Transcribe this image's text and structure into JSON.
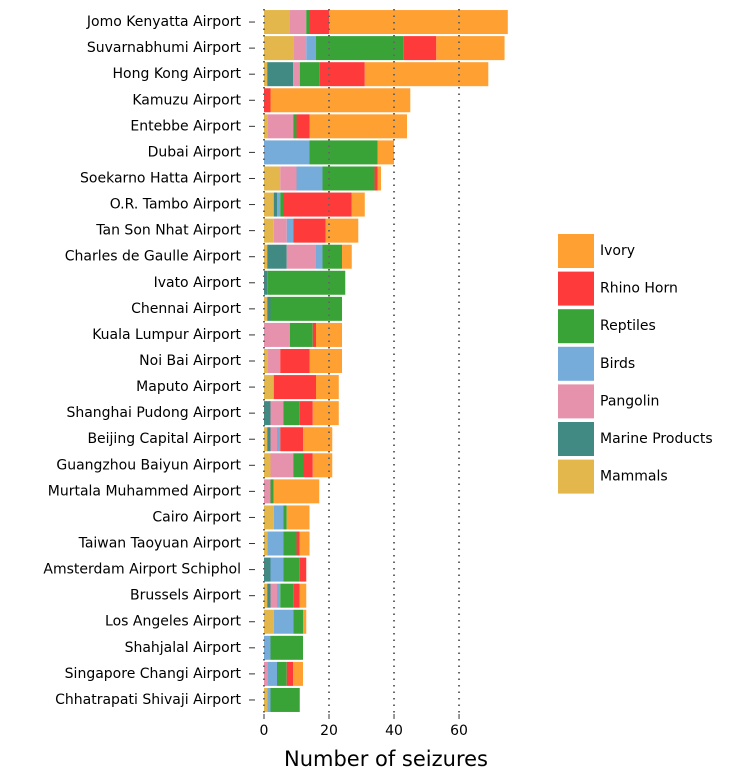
{
  "chart_data": {
    "type": "stacked_bar_horizontal",
    "categories": [
      "Jomo Kenyatta Airport",
      "Suvarnabhumi Airport",
      "Hong Kong Airport",
      "Kamuzu Airport",
      "Entebbe Airport",
      "Dubai Airport",
      "Soekarno Hatta Airport",
      "O.R. Tambo Airport",
      "Tan Son Nhat Airport",
      "Charles de Gaulle Airport",
      "Ivato Airport",
      "Chennai Airport",
      "Kuala Lumpur Airport",
      "Noi Bai Airport",
      "Maputo Airport",
      "Shanghai Pudong Airport",
      "Beijing Capital Airport",
      "Guangzhou Baiyun Airport",
      "Murtala Muhammed Airport",
      "Cairo Airport",
      "Taiwan Taoyuan Airport",
      "Amsterdam Airport Schiphol",
      "Brussels Airport",
      "Los Angeles Airport",
      "Shahjalal Airport",
      "Singapore Changi Airport",
      "Chhatrapati Shivaji Airport"
    ],
    "series": [
      {
        "name": "Ivory",
        "color": "#ffa033",
        "values": [
          55,
          21,
          38,
          43,
          30,
          5,
          1,
          4,
          10,
          3,
          0,
          0,
          8,
          10,
          7,
          8,
          9,
          6,
          14,
          7,
          3,
          0,
          2,
          1,
          0,
          3,
          0
        ]
      },
      {
        "name": "Rhino Horn",
        "color": "#ff3a3a",
        "values": [
          6,
          10,
          14,
          2,
          4,
          0,
          1,
          21,
          10,
          0,
          0,
          0,
          1,
          9,
          13,
          4,
          7,
          3,
          0,
          0,
          1,
          2,
          2,
          0,
          0,
          2,
          0
        ]
      },
      {
        "name": "Reptiles",
        "color": "#3aa338",
        "values": [
          1,
          27,
          6,
          0,
          1,
          21,
          16,
          1,
          0,
          6,
          24,
          22,
          7,
          0,
          0,
          5,
          0,
          3,
          1,
          1,
          4,
          5,
          4,
          3,
          10,
          3,
          9
        ]
      },
      {
        "name": "Birds",
        "color": "#76acd9",
        "values": [
          0,
          3,
          0,
          0,
          0,
          14,
          8,
          1,
          2,
          2,
          0,
          0,
          0,
          0,
          0,
          0,
          1,
          0,
          0,
          3,
          5,
          4,
          1,
          6,
          2,
          3,
          1
        ]
      },
      {
        "name": "Pangolin",
        "color": "#e692ac",
        "values": [
          5,
          4,
          2,
          0,
          8,
          0,
          5,
          0,
          4,
          9,
          0,
          0,
          8,
          4,
          0,
          4,
          2,
          7,
          2,
          0,
          0,
          0,
          2,
          0,
          0,
          1,
          0
        ]
      },
      {
        "name": "Marine Products",
        "color": "#418a83",
        "values": [
          0,
          0,
          8,
          0,
          0,
          0,
          0,
          1,
          0,
          6,
          1,
          1,
          0,
          0,
          0,
          2,
          1,
          0,
          0,
          0,
          0,
          2,
          1,
          0,
          0,
          0,
          0
        ]
      },
      {
        "name": "Mammals",
        "color": "#e3b74b",
        "values": [
          8,
          9,
          1,
          0,
          1,
          0,
          5,
          3,
          3,
          1,
          0,
          1,
          0,
          1,
          3,
          0,
          1,
          2,
          0,
          3,
          1,
          0,
          1,
          3,
          0,
          0,
          1
        ]
      }
    ],
    "x_label": "Number of seizures",
    "xlim": [
      -2,
      77
    ],
    "xticks": [
      0,
      20,
      40,
      60
    ],
    "grid": true,
    "legend": "right"
  }
}
